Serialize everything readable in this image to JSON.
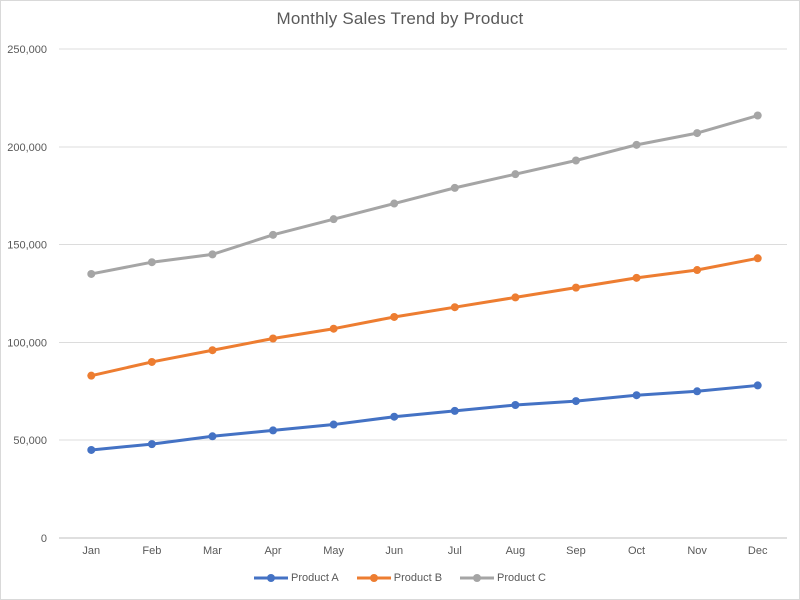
{
  "chart_data": {
    "type": "line",
    "title": "Monthly Sales Trend by Product",
    "categories": [
      "Jan",
      "Feb",
      "Mar",
      "Apr",
      "May",
      "Jun",
      "Jul",
      "Aug",
      "Sep",
      "Oct",
      "Nov",
      "Dec"
    ],
    "series": [
      {
        "name": "Product A",
        "color": "#4472C4",
        "values": [
          45000,
          48000,
          52000,
          55000,
          58000,
          62000,
          65000,
          68000,
          70000,
          73000,
          75000,
          78000
        ]
      },
      {
        "name": "Product B",
        "color": "#ED7D31",
        "values": [
          83000,
          90000,
          96000,
          102000,
          107000,
          113000,
          118000,
          123000,
          128000,
          133000,
          137000,
          143000
        ]
      },
      {
        "name": "Product C",
        "color": "#A5A5A5",
        "values": [
          135000,
          141000,
          145000,
          155000,
          163000,
          171000,
          179000,
          186000,
          193000,
          201000,
          207000,
          216000
        ]
      }
    ],
    "y_axis": {
      "min": 0,
      "max": 250000,
      "step": 50000,
      "tick_labels": [
        "0",
        "50,000",
        "100,000",
        "150,000",
        "200,000",
        "250,000"
      ]
    },
    "x_axis": {
      "label": ""
    },
    "legend_position": "bottom",
    "grid": true
  },
  "colors": {
    "background": "#FFFFFF",
    "border": "#D9D9D9",
    "gridline": "#DCDCDC",
    "axis_line": "#BFBFBF",
    "text": "#595959"
  }
}
